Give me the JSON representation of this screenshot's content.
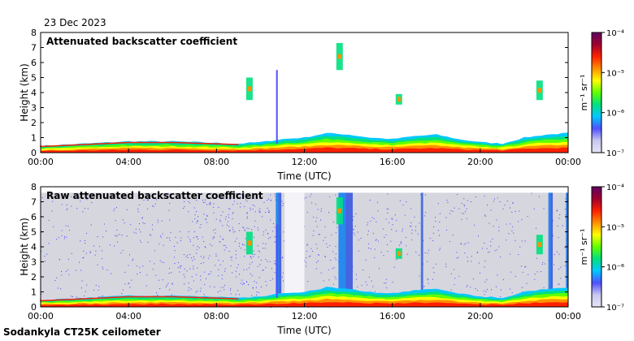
{
  "page": {
    "date": "23 Dec 2023",
    "footer": "Sodankyla CT25K ceilometer"
  },
  "colors": {
    "background_raw": "#d6d6de",
    "background_attenuated": "#ffffff",
    "noise": "#4040ff",
    "colormap": [
      "#e4e4f4",
      "#c8c8f0",
      "#5050ff",
      "#00c8ff",
      "#00e080",
      "#60ff00",
      "#ffff00",
      "#ff9000",
      "#ff2000",
      "#a00030",
      "#600060"
    ]
  },
  "chart_data": [
    {
      "type": "heatmap",
      "title": "Attenuated backscatter coefficient",
      "xlabel": "Time (UTC)",
      "ylabel": "Height (km)",
      "xticks": [
        "00:00",
        "04:00",
        "08:00",
        "12:00",
        "16:00",
        "20:00",
        "00:00"
      ],
      "xlim": [
        "00:00",
        "24:00"
      ],
      "yticks": [
        "0",
        "1",
        "2",
        "3",
        "4",
        "5",
        "6",
        "7",
        "8"
      ],
      "ylim": [
        0,
        8
      ],
      "colorbar": {
        "label": "m⁻¹ sr⁻¹",
        "scale": "log",
        "range": [
          1e-07,
          0.0001
        ],
        "ticks": [
          "10⁻⁷",
          "10⁻⁶",
          "10⁻⁵",
          "10⁻⁴"
        ]
      },
      "boundary_layer_top_km": {
        "hours": [
          0,
          2,
          4,
          6,
          8,
          9,
          10,
          11,
          12,
          13,
          14,
          15,
          16,
          17,
          18,
          19,
          20,
          21,
          22,
          23,
          24
        ],
        "height": [
          0.45,
          0.6,
          0.75,
          0.75,
          0.65,
          0.6,
          0.7,
          0.9,
          1.0,
          1.3,
          1.2,
          1.0,
          0.9,
          1.1,
          1.2,
          0.9,
          0.7,
          0.6,
          1.0,
          1.2,
          1.3
        ]
      },
      "features": [
        {
          "kind": "fall-streak",
          "hour": 10.75,
          "bottom_km": 0.6,
          "top_km": 5.5
        },
        {
          "kind": "cloud",
          "hour": 13.6,
          "bottom_km": 5.5,
          "top_km": 7.3
        },
        {
          "kind": "cloud",
          "hour": 16.3,
          "bottom_km": 3.2,
          "top_km": 3.9
        },
        {
          "kind": "cloud",
          "hour": 22.7,
          "bottom_km": 3.5,
          "top_km": 4.8
        },
        {
          "kind": "cloud",
          "hour": 9.5,
          "bottom_km": 3.5,
          "top_km": 5.0
        }
      ]
    },
    {
      "type": "heatmap",
      "title": "Raw attenuated backscatter coefficient",
      "xlabel": "Time (UTC)",
      "ylabel": "Height (km)",
      "xticks": [
        "00:00",
        "04:00",
        "08:00",
        "12:00",
        "16:00",
        "20:00",
        "00:00"
      ],
      "xlim": [
        "00:00",
        "24:00"
      ],
      "yticks": [
        "0",
        "1",
        "2",
        "3",
        "4",
        "5",
        "6",
        "7",
        "8"
      ],
      "ylim": [
        0,
        8
      ],
      "colorbar": {
        "label": "m⁻¹ sr⁻¹",
        "scale": "log",
        "range": [
          1e-07,
          0.0001
        ],
        "ticks": [
          "10⁻⁷",
          "10⁻⁶",
          "10⁻⁵",
          "10⁻⁴"
        ]
      },
      "signal_top_km": 7.6,
      "noise_columns_hours": [
        {
          "from": 10.7,
          "to": 10.95
        },
        {
          "from": 13.55,
          "to": 14.2
        },
        {
          "from": 17.3,
          "to": 17.4
        },
        {
          "from": 23.1,
          "to": 23.3
        },
        {
          "from": 23.9,
          "to": 24.0
        }
      ],
      "clear_columns_hours": [
        {
          "from": 11.1,
          "to": 12.0
        }
      ]
    }
  ]
}
